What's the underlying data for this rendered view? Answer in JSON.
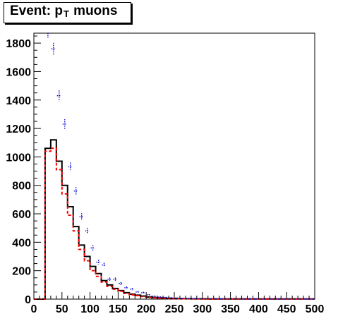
{
  "title": {
    "prefix": "Event: p",
    "subscript": "T",
    "suffix": " muons"
  },
  "chart_data": {
    "type": "histogram",
    "title": "Event: pT muons",
    "xlabel": "",
    "ylabel": "",
    "xlim": [
      0,
      500
    ],
    "ylim": [
      0,
      1870
    ],
    "bin_width": 10,
    "x_ticks": [
      0,
      50,
      100,
      150,
      200,
      250,
      300,
      350,
      400,
      450,
      500
    ],
    "y_ticks": [
      0,
      200,
      400,
      600,
      800,
      1000,
      1200,
      1400,
      1600,
      1800
    ],
    "grid": false,
    "legend": "none",
    "bin_starts": [
      0,
      10,
      20,
      30,
      40,
      50,
      60,
      70,
      80,
      90,
      100,
      110,
      120,
      130,
      140,
      150,
      160,
      170,
      180,
      190,
      200,
      210,
      220,
      230,
      240,
      250,
      260,
      270,
      280,
      290,
      300,
      310,
      320,
      330,
      340,
      350,
      360,
      370,
      380,
      390,
      400,
      410,
      420,
      430,
      440,
      450,
      460,
      470,
      480,
      490
    ],
    "series": [
      {
        "style": "solid-step",
        "color": "#000000",
        "values": [
          0,
          0,
          1060,
          1120,
          970,
          800,
          650,
          510,
          380,
          300,
          230,
          180,
          130,
          100,
          75,
          60,
          45,
          35,
          28,
          22,
          15,
          11,
          8,
          6,
          5,
          4,
          3,
          3,
          2,
          2,
          2,
          1,
          1,
          1,
          1,
          1,
          1,
          1,
          1,
          1,
          1,
          1,
          1,
          1,
          1,
          1,
          1,
          1,
          1,
          1
        ]
      },
      {
        "style": "dashed-step",
        "color": "#ff0000",
        "values": [
          0,
          0,
          1040,
          1060,
          910,
          740,
          590,
          480,
          350,
          270,
          200,
          160,
          120,
          90,
          70,
          55,
          40,
          30,
          25,
          18,
          12,
          9,
          7,
          5,
          4,
          3,
          3,
          2,
          2,
          2,
          1,
          1,
          1,
          1,
          1,
          1,
          1,
          1,
          1,
          1,
          1,
          1,
          1,
          1,
          1,
          1,
          1,
          1,
          1,
          1
        ]
      },
      {
        "style": "dotted-errorbars",
        "color": "#0000cc",
        "values": [
          0,
          0,
          1880,
          1760,
          1430,
          1230,
          930,
          760,
          580,
          480,
          360,
          260,
          240,
          140,
          140,
          110,
          80,
          70,
          50,
          45,
          30,
          20,
          15,
          12,
          10,
          8,
          6,
          5,
          4,
          4,
          3,
          3,
          2,
          2,
          2,
          2,
          2,
          1,
          1,
          1,
          1,
          1,
          1,
          1,
          1,
          1,
          1,
          1,
          1,
          1
        ]
      }
    ]
  }
}
